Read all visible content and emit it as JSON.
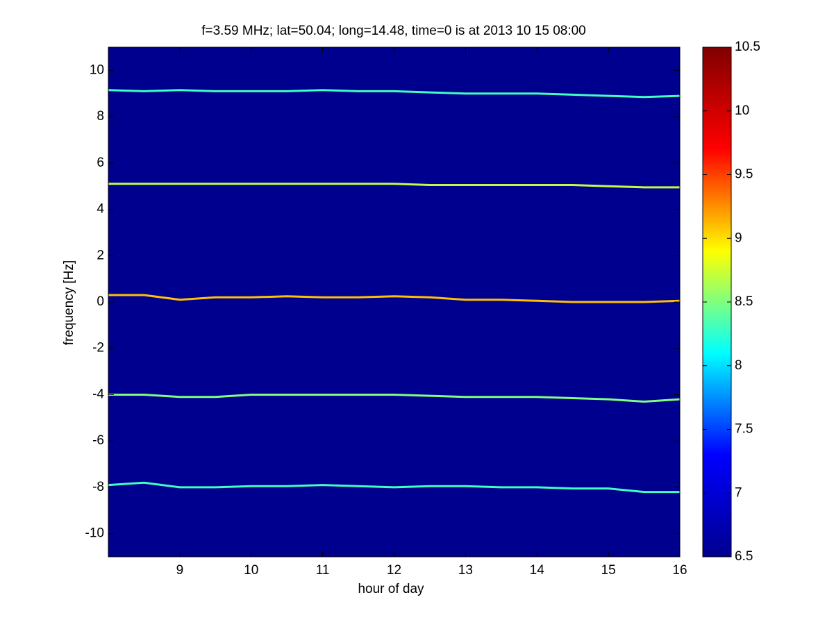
{
  "chart_data": {
    "type": "spectrogram",
    "title": "f=3.59 MHz;  lat=50.04; long=14.48, time=0 is at 2013 10 15 08:00",
    "xlabel": "hour of day",
    "ylabel": "frequency [Hz]",
    "xlim": [
      8,
      16
    ],
    "xticks": [
      9,
      10,
      11,
      12,
      13,
      14,
      15,
      16
    ],
    "ylim": [
      -11,
      11
    ],
    "yticks": [
      -10,
      -8,
      -6,
      -4,
      -2,
      0,
      2,
      4,
      6,
      8,
      10
    ],
    "background": "#00008f",
    "x": [
      8,
      8.5,
      9,
      9.5,
      10,
      10.5,
      11,
      11.5,
      12,
      12.5,
      13,
      13.5,
      14,
      14.5,
      15,
      15.5,
      16
    ],
    "series": [
      {
        "color": "#40ffc0",
        "values": [
          9.15,
          9.1,
          9.15,
          9.1,
          9.1,
          9.1,
          9.15,
          9.1,
          9.1,
          9.05,
          9.0,
          9.0,
          9.0,
          8.95,
          8.9,
          8.85,
          8.9
        ]
      },
      {
        "color": "#c0ff40",
        "values": [
          5.1,
          5.1,
          5.1,
          5.1,
          5.1,
          5.1,
          5.1,
          5.1,
          5.1,
          5.05,
          5.05,
          5.05,
          5.05,
          5.05,
          5.0,
          4.95,
          4.95
        ]
      },
      {
        "color": "#ffc000",
        "values": [
          0.3,
          0.3,
          0.1,
          0.2,
          0.2,
          0.25,
          0.2,
          0.2,
          0.25,
          0.2,
          0.1,
          0.1,
          0.05,
          0,
          0,
          0,
          0.05
        ]
      },
      {
        "color": "#80ff80",
        "values": [
          -4.0,
          -4.0,
          -4.1,
          -4.1,
          -4.0,
          -4.0,
          -4.0,
          -4.0,
          -4.0,
          -4.05,
          -4.1,
          -4.1,
          -4.1,
          -4.15,
          -4.2,
          -4.3,
          -4.2
        ]
      },
      {
        "color": "#40ffc0",
        "values": [
          -7.9,
          -7.8,
          -8.0,
          -8.0,
          -7.95,
          -7.95,
          -7.9,
          -7.95,
          -8.0,
          -7.95,
          -7.95,
          -8.0,
          -8.0,
          -8.05,
          -8.05,
          -8.2,
          -8.2
        ]
      }
    ],
    "clim": [
      6.5,
      10.5
    ],
    "cticks": [
      6.5,
      7,
      7.5,
      8,
      8.5,
      9,
      9.5,
      10,
      10.5
    ],
    "colormap": [
      "#00008f",
      "#0000ff",
      "#00ffff",
      "#ffff00",
      "#ff0000",
      "#800000"
    ]
  }
}
